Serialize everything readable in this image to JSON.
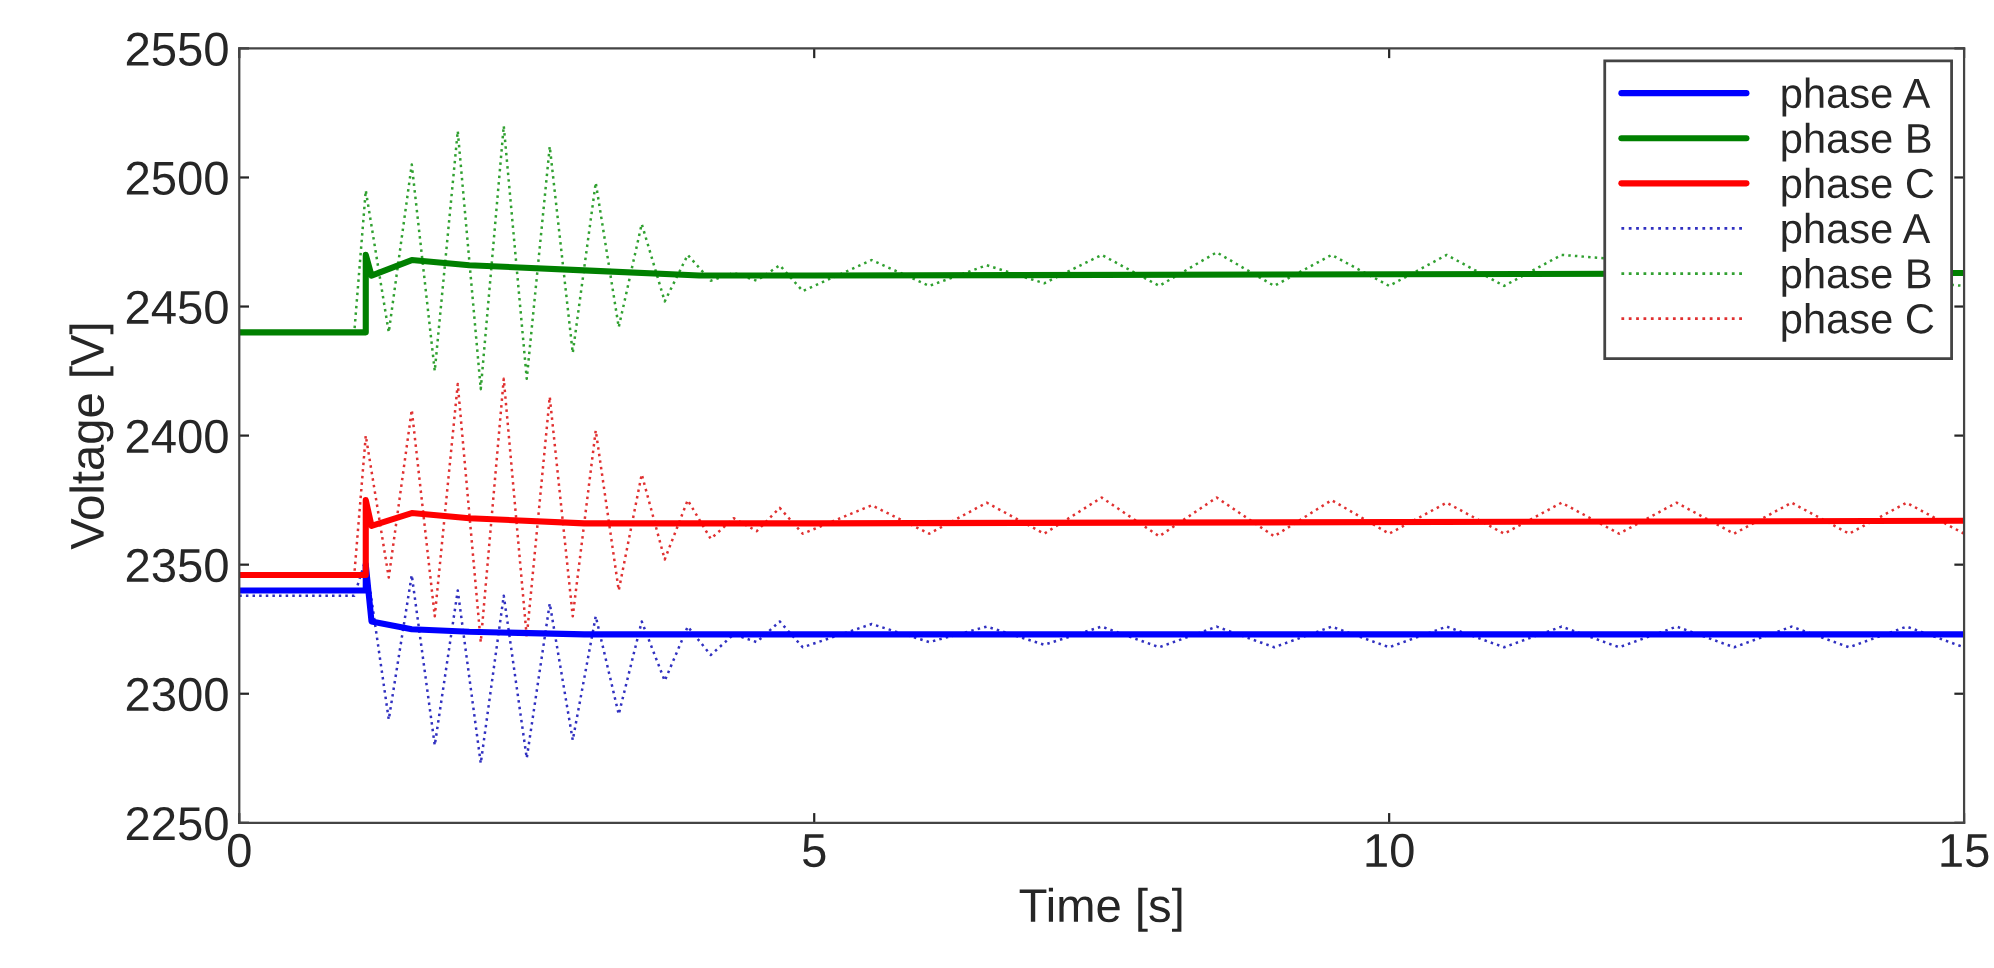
{
  "chart_data": {
    "type": "line",
    "xlabel": "Time [s]",
    "ylabel": "Voltage [V]",
    "xlim": [
      0,
      15
    ],
    "xticks": [
      0,
      5,
      10,
      15
    ],
    "ylim": [
      2250,
      2550
    ],
    "yticks": [
      2250,
      2300,
      2350,
      2400,
      2450,
      2500,
      2550
    ],
    "grid": false,
    "legend": "top right",
    "marker": "none",
    "series": [
      {
        "name": "phase A",
        "color": "#0000ff",
        "line_style": "solid",
        "x": [
          0,
          1.1,
          1.1,
          1.15,
          1.5,
          2,
          3,
          4,
          5,
          15
        ],
        "values": [
          2340,
          2340,
          2350,
          2328,
          2325,
          2324,
          2323,
          2323,
          2323,
          2323
        ]
      },
      {
        "name": "phase B",
        "color": "#008000",
        "line_style": "solid",
        "x": [
          0,
          1.1,
          1.1,
          1.15,
          1.5,
          2,
          3,
          4,
          5,
          15
        ],
        "values": [
          2440,
          2440,
          2470,
          2462,
          2468,
          2466,
          2464,
          2462,
          2462,
          2463
        ]
      },
      {
        "name": "phase C",
        "color": "#ff0000",
        "line_style": "solid",
        "x": [
          0,
          1.1,
          1.1,
          1.15,
          1.5,
          2,
          3,
          4,
          5,
          15
        ],
        "values": [
          2346,
          2346,
          2375,
          2365,
          2370,
          2368,
          2366,
          2366,
          2366,
          2367
        ]
      },
      {
        "name": "phase A",
        "color": "#3030c0",
        "line_style": "dotted",
        "x": [
          0,
          1.0,
          1.1,
          1.3,
          1.5,
          1.7,
          1.9,
          2.1,
          2.3,
          2.5,
          2.7,
          2.9,
          3.1,
          3.3,
          3.5,
          3.7,
          3.9,
          4.1,
          4.3,
          4.5,
          4.7,
          4.9,
          5.5,
          6,
          6.5,
          7,
          7.5,
          8,
          8.5,
          9,
          9.5,
          10,
          10.5,
          11,
          11.5,
          12,
          12.5,
          13,
          13.5,
          14,
          14.5,
          15
        ],
        "values": [
          2338,
          2338,
          2352,
          2290,
          2346,
          2280,
          2340,
          2273,
          2338,
          2275,
          2335,
          2282,
          2330,
          2292,
          2328,
          2305,
          2326,
          2315,
          2323,
          2320,
          2328,
          2318,
          2327,
          2320,
          2326,
          2319,
          2326,
          2318,
          2326,
          2318,
          2326,
          2318,
          2326,
          2318,
          2326,
          2318,
          2326,
          2318,
          2326,
          2318,
          2326,
          2318
        ]
      },
      {
        "name": "phase B",
        "color": "#30a030",
        "line_style": "dotted",
        "x": [
          0,
          1.0,
          1.1,
          1.3,
          1.5,
          1.7,
          1.9,
          2.1,
          2.3,
          2.5,
          2.7,
          2.9,
          3.1,
          3.3,
          3.5,
          3.7,
          3.9,
          4.1,
          4.3,
          4.5,
          4.7,
          4.9,
          5.5,
          6,
          6.5,
          7,
          7.5,
          8,
          8.5,
          9,
          9.5,
          10,
          10.5,
          11,
          11.5,
          12,
          12.5,
          13,
          13.5,
          14,
          14.5,
          15
        ],
        "values": [
          2440,
          2440,
          2495,
          2440,
          2505,
          2425,
          2518,
          2418,
          2520,
          2422,
          2512,
          2432,
          2498,
          2442,
          2482,
          2452,
          2470,
          2460,
          2463,
          2460,
          2466,
          2456,
          2468,
          2458,
          2466,
          2459,
          2470,
          2458,
          2471,
          2458,
          2470,
          2458,
          2470,
          2458,
          2470,
          null,
          null,
          null,
          null,
          null,
          null,
          2458
        ]
      },
      {
        "name": "phase C",
        "color": "#e03030",
        "line_style": "dotted",
        "x": [
          0,
          1.0,
          1.1,
          1.3,
          1.5,
          1.7,
          1.9,
          2.1,
          2.3,
          2.5,
          2.7,
          2.9,
          3.1,
          3.3,
          3.5,
          3.7,
          3.9,
          4.1,
          4.3,
          4.5,
          4.7,
          4.9,
          5.5,
          6,
          6.5,
          7,
          7.5,
          8,
          8.5,
          9,
          9.5,
          10,
          10.5,
          11,
          11.5,
          12,
          12.5,
          13,
          13.5,
          14,
          14.5,
          15
        ],
        "values": [
          2346,
          2346,
          2400,
          2345,
          2410,
          2330,
          2420,
          2320,
          2422,
          2322,
          2415,
          2330,
          2402,
          2340,
          2385,
          2352,
          2375,
          2360,
          2368,
          2363,
          2372,
          2362,
          2373,
          2362,
          2374,
          2362,
          2376,
          2361,
          2376,
          2361,
          2375,
          2362,
          2374,
          2362,
          2374,
          2362,
          2374,
          2362,
          2374,
          2362,
          2374,
          2362
        ]
      }
    ]
  }
}
